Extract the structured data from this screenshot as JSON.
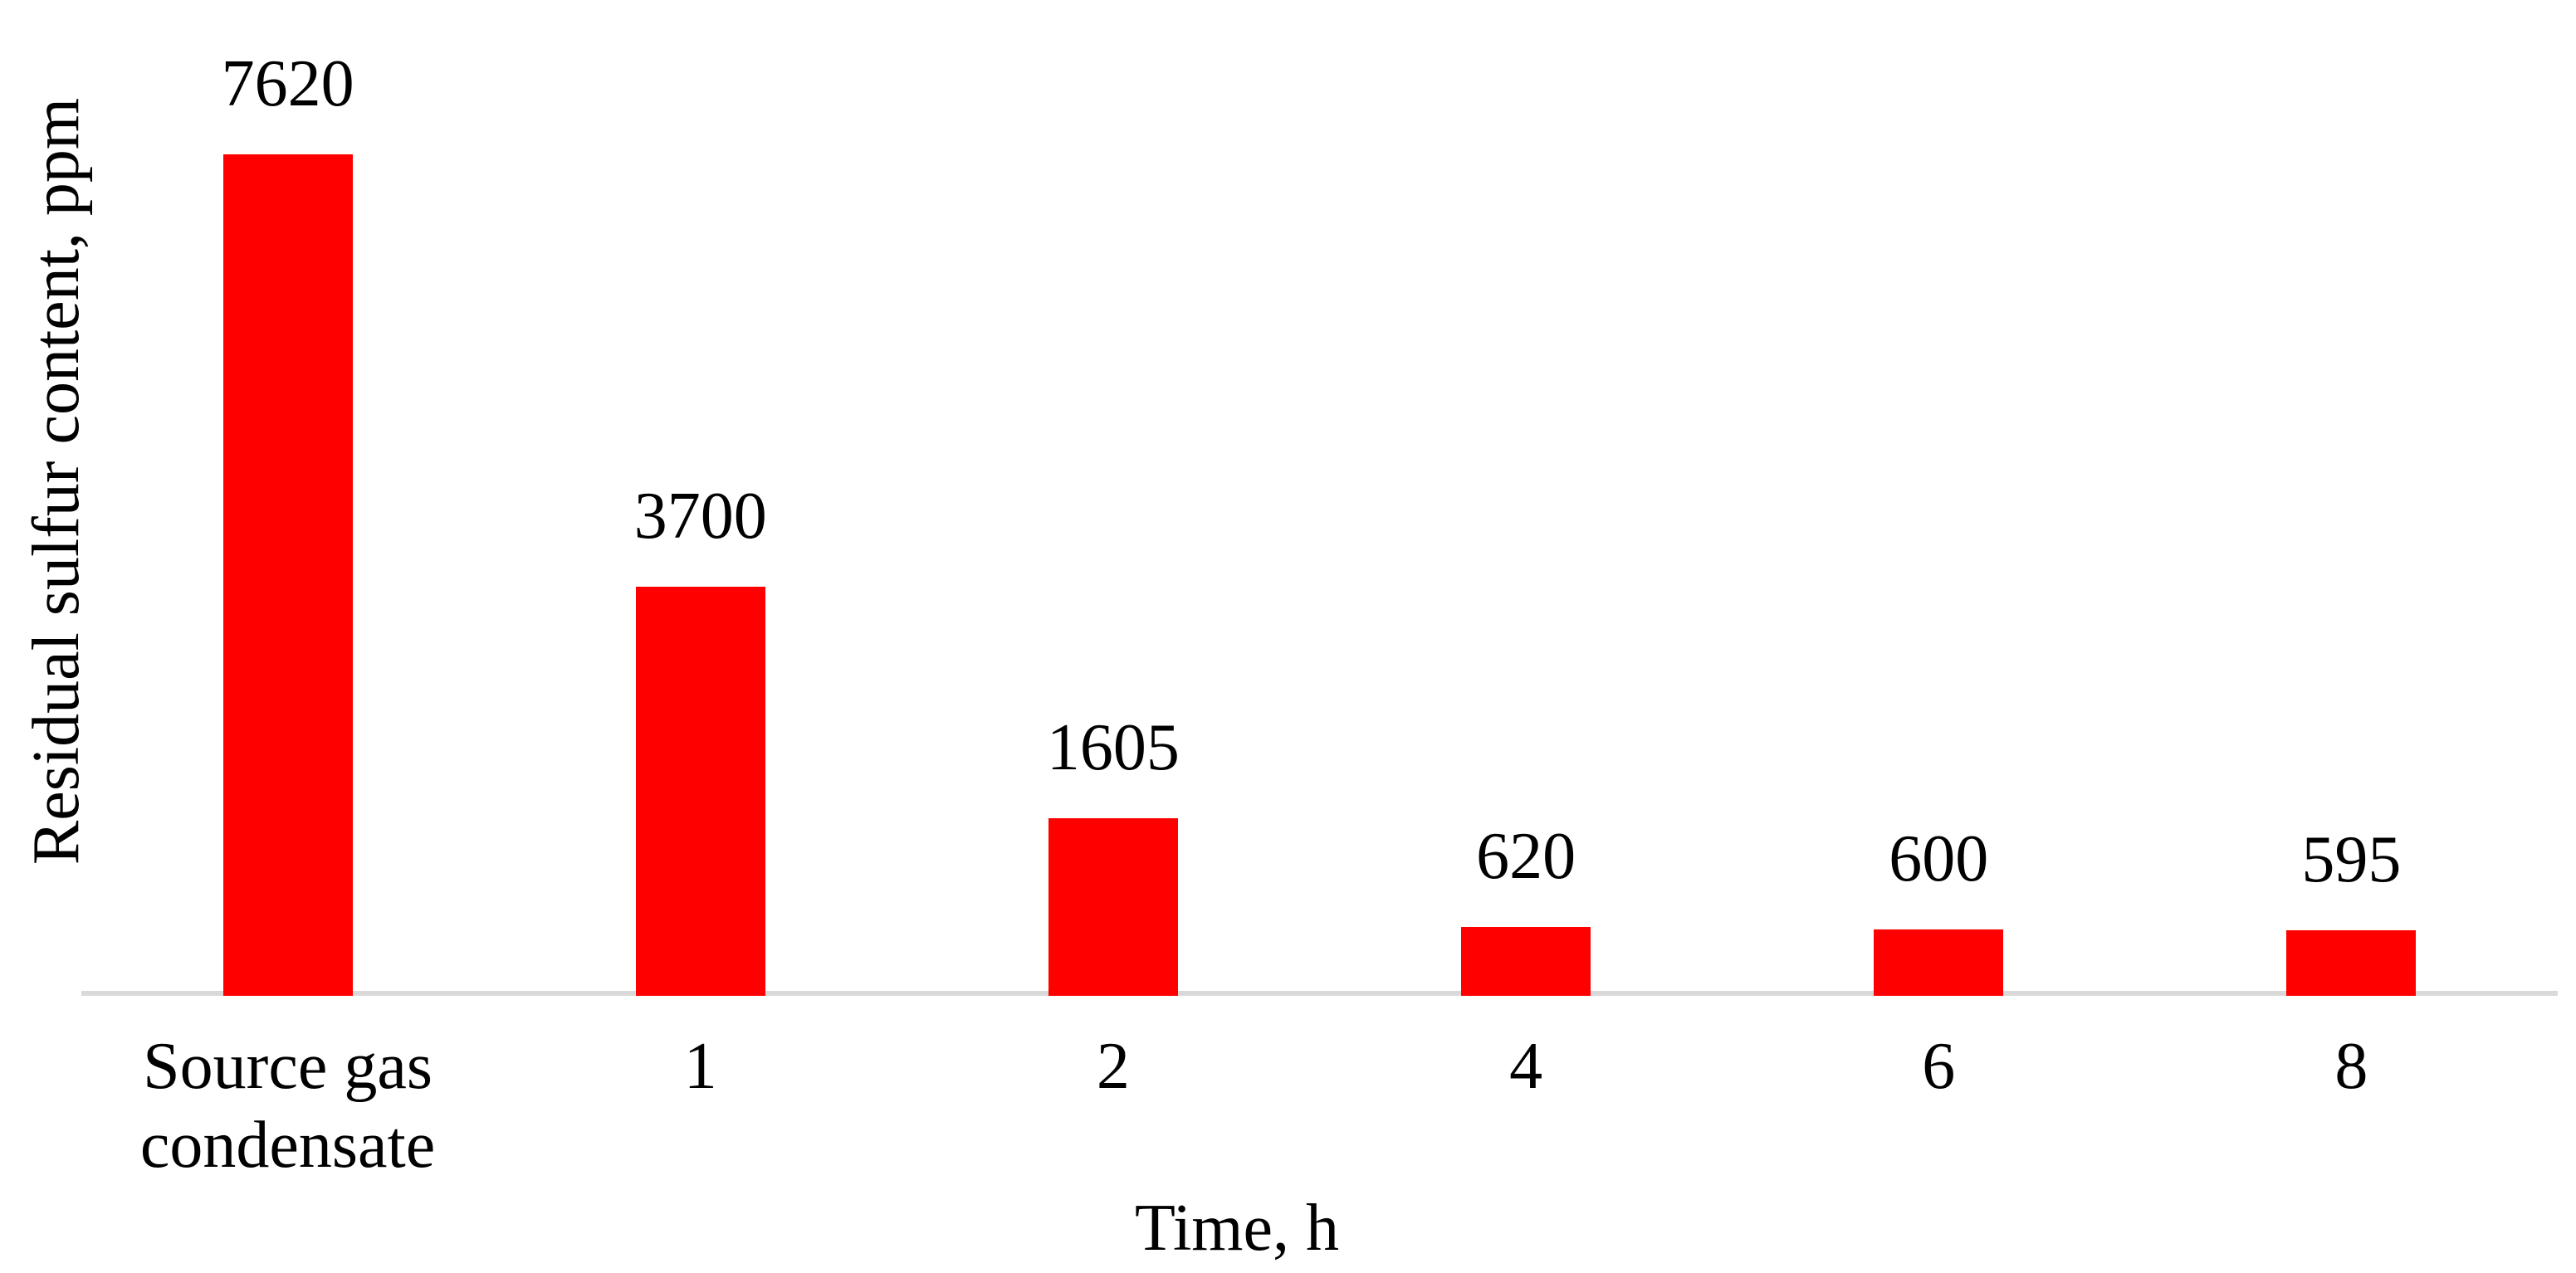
{
  "chart_data": {
    "type": "bar",
    "categories": [
      "Source gas\ncondensate",
      "1",
      "2",
      "4",
      "6",
      "8"
    ],
    "values": [
      7620,
      3700,
      1605,
      620,
      600,
      595
    ],
    "data_labels": [
      "7620",
      "3700",
      "1605",
      "620",
      "600",
      "595"
    ],
    "title": "",
    "xlabel": "Time, h",
    "ylabel": "Residual sulfur content, ppm",
    "ylim": [
      0,
      8000
    ],
    "grid": false,
    "legend": false,
    "y_axis_ticks_visible": false,
    "bar_color": "#ff0000",
    "axis_line_color": "#d9d9d9",
    "text_color": "#000000"
  }
}
